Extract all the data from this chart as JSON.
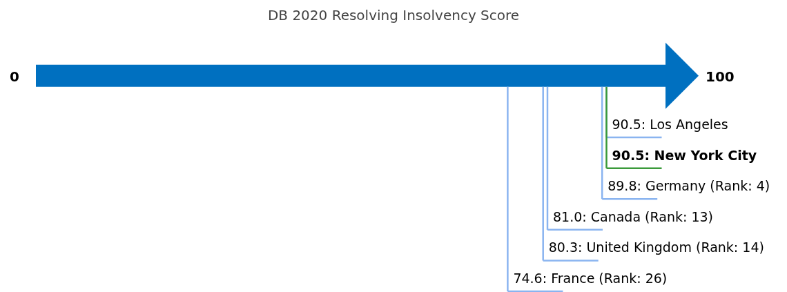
{
  "chart_data": {
    "type": "other",
    "title": "DB 2020 Resolving Insolvency Score",
    "categories": [
      "Los Angeles",
      "New York City",
      "Germany (Rank: 4)",
      "Canada (Rank: 13)",
      "United Kingdom (Rank: 14)",
      "France (Rank: 26)"
    ],
    "values": [
      90.5,
      90.5,
      89.8,
      81.0,
      80.3,
      74.6
    ],
    "value_labels": [
      "90.5:",
      "90.5:",
      "89.8:",
      "81.0:",
      "80.3:",
      "74.6:"
    ],
    "colors": [
      "#8ab4f0",
      "#3a9a3a",
      "#8ab4f0",
      "#8ab4f0",
      "#8ab4f0",
      "#8ab4f0"
    ],
    "annotations": [
      "0",
      "100"
    ]
  }
}
